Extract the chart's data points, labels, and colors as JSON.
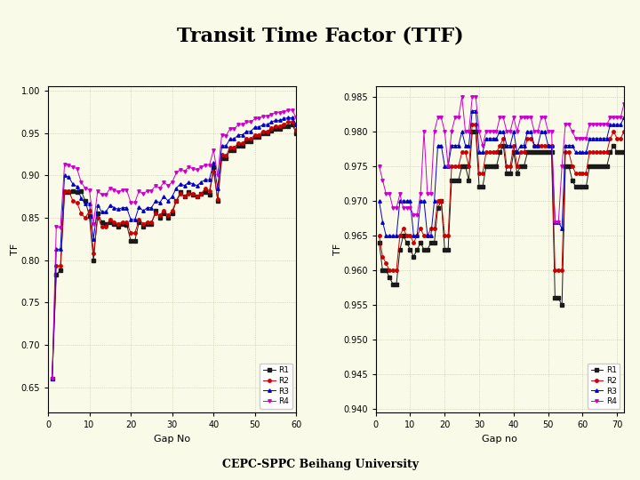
{
  "title": "Transit Time Factor (TTF)",
  "title_fontsize": 16,
  "title_fontweight": "bold",
  "subtitle": "CEPC-SPPC Beihang University",
  "subtitle_fontsize": 9,
  "background_color": "#FAFAE8",
  "plot_bg_color": "#FAFAE8",
  "colors": {
    "R1": "#1a1a1a",
    "R2": "#cc0000",
    "R3": "#0000cc",
    "R4": "#cc00cc"
  },
  "markers": {
    "R1": "s",
    "R2": "o",
    "R3": "^",
    "R4": "v"
  },
  "left_plot": {
    "xlabel": "Gap No",
    "ylabel": "TF",
    "xlim": [
      0,
      60
    ],
    "ylim": [
      0.62,
      1.005
    ],
    "yticks": [
      0.65,
      0.7,
      0.75,
      0.8,
      0.85,
      0.9,
      0.95,
      1.0
    ],
    "xticks": [
      0,
      10,
      20,
      30,
      40,
      50,
      60
    ],
    "R1": [
      0.66,
      0.783,
      0.788,
      0.88,
      0.88,
      0.882,
      0.88,
      0.882,
      0.87,
      0.852,
      0.8,
      0.855,
      0.845,
      0.843,
      0.845,
      0.843,
      0.84,
      0.843,
      0.842,
      0.823,
      0.823,
      0.845,
      0.84,
      0.843,
      0.843,
      0.858,
      0.85,
      0.855,
      0.85,
      0.855,
      0.87,
      0.88,
      0.875,
      0.88,
      0.877,
      0.875,
      0.878,
      0.88,
      0.877,
      0.91,
      0.87,
      0.92,
      0.92,
      0.93,
      0.93,
      0.935,
      0.935,
      0.94,
      0.94,
      0.945,
      0.945,
      0.95,
      0.95,
      0.953,
      0.955,
      0.955,
      0.958,
      0.958,
      0.96,
      0.95
    ],
    "R2": [
      0.66,
      0.793,
      0.793,
      0.882,
      0.882,
      0.87,
      0.868,
      0.855,
      0.85,
      0.858,
      0.808,
      0.85,
      0.84,
      0.84,
      0.848,
      0.845,
      0.843,
      0.845,
      0.845,
      0.832,
      0.832,
      0.848,
      0.843,
      0.845,
      0.845,
      0.855,
      0.853,
      0.858,
      0.853,
      0.858,
      0.87,
      0.878,
      0.875,
      0.878,
      0.878,
      0.875,
      0.878,
      0.885,
      0.882,
      0.905,
      0.872,
      0.925,
      0.923,
      0.933,
      0.933,
      0.938,
      0.938,
      0.943,
      0.943,
      0.948,
      0.948,
      0.952,
      0.952,
      0.956,
      0.958,
      0.958,
      0.96,
      0.963,
      0.963,
      0.953
    ],
    "R3": [
      0.66,
      0.813,
      0.813,
      0.9,
      0.898,
      0.89,
      0.887,
      0.873,
      0.867,
      0.867,
      0.825,
      0.865,
      0.857,
      0.857,
      0.865,
      0.862,
      0.86,
      0.862,
      0.862,
      0.848,
      0.848,
      0.863,
      0.858,
      0.862,
      0.862,
      0.87,
      0.868,
      0.875,
      0.87,
      0.875,
      0.885,
      0.89,
      0.888,
      0.892,
      0.89,
      0.888,
      0.892,
      0.895,
      0.895,
      0.915,
      0.885,
      0.935,
      0.935,
      0.943,
      0.943,
      0.948,
      0.948,
      0.952,
      0.952,
      0.957,
      0.957,
      0.96,
      0.96,
      0.963,
      0.965,
      0.965,
      0.967,
      0.968,
      0.968,
      0.96
    ],
    "R4": [
      0.66,
      0.84,
      0.838,
      0.913,
      0.912,
      0.91,
      0.908,
      0.892,
      0.885,
      0.883,
      0.843,
      0.882,
      0.877,
      0.877,
      0.885,
      0.883,
      0.88,
      0.883,
      0.883,
      0.868,
      0.868,
      0.882,
      0.878,
      0.882,
      0.882,
      0.888,
      0.885,
      0.892,
      0.888,
      0.892,
      0.903,
      0.907,
      0.905,
      0.91,
      0.908,
      0.907,
      0.91,
      0.912,
      0.912,
      0.93,
      0.9,
      0.948,
      0.947,
      0.955,
      0.955,
      0.96,
      0.96,
      0.963,
      0.963,
      0.967,
      0.967,
      0.97,
      0.97,
      0.972,
      0.974,
      0.974,
      0.975,
      0.977,
      0.977,
      0.968
    ]
  },
  "right_plot": {
    "xlabel": "Gap no",
    "ylabel": "TF",
    "xlim": [
      0,
      72
    ],
    "ylim": [
      0.9395,
      0.9865
    ],
    "yticks": [
      0.94,
      0.945,
      0.95,
      0.955,
      0.96,
      0.965,
      0.97,
      0.975,
      0.98,
      0.985
    ],
    "xticks": [
      0,
      10,
      20,
      30,
      40,
      50,
      60,
      70
    ],
    "R1": [
      0.964,
      0.96,
      0.96,
      0.959,
      0.958,
      0.958,
      0.963,
      0.965,
      0.964,
      0.963,
      0.962,
      0.963,
      0.964,
      0.963,
      0.963,
      0.964,
      0.964,
      0.969,
      0.97,
      0.963,
      0.963,
      0.973,
      0.973,
      0.973,
      0.975,
      0.975,
      0.973,
      0.98,
      0.98,
      0.972,
      0.972,
      0.975,
      0.975,
      0.975,
      0.975,
      0.977,
      0.978,
      0.974,
      0.974,
      0.977,
      0.974,
      0.975,
      0.975,
      0.977,
      0.977,
      0.977,
      0.977,
      0.977,
      0.977,
      0.977,
      0.977,
      0.956,
      0.956,
      0.955,
      0.975,
      0.975,
      0.973,
      0.972,
      0.972,
      0.972,
      0.972,
      0.975,
      0.975,
      0.975,
      0.975,
      0.975,
      0.975,
      0.977,
      0.978,
      0.977,
      0.977,
      0.977
    ],
    "R2": [
      0.965,
      0.962,
      0.961,
      0.96,
      0.96,
      0.96,
      0.965,
      0.966,
      0.965,
      0.965,
      0.964,
      0.965,
      0.966,
      0.965,
      0.965,
      0.966,
      0.966,
      0.97,
      0.97,
      0.965,
      0.965,
      0.975,
      0.975,
      0.975,
      0.977,
      0.977,
      0.975,
      0.981,
      0.981,
      0.974,
      0.974,
      0.977,
      0.977,
      0.977,
      0.977,
      0.978,
      0.979,
      0.975,
      0.975,
      0.978,
      0.975,
      0.977,
      0.977,
      0.979,
      0.979,
      0.978,
      0.978,
      0.978,
      0.978,
      0.978,
      0.978,
      0.96,
      0.96,
      0.96,
      0.977,
      0.977,
      0.975,
      0.974,
      0.974,
      0.974,
      0.974,
      0.977,
      0.977,
      0.977,
      0.977,
      0.977,
      0.977,
      0.979,
      0.98,
      0.979,
      0.979,
      0.98
    ],
    "R3": [
      0.97,
      0.967,
      0.965,
      0.965,
      0.965,
      0.965,
      0.97,
      0.97,
      0.97,
      0.97,
      0.965,
      0.965,
      0.97,
      0.97,
      0.965,
      0.965,
      0.97,
      0.978,
      0.978,
      0.975,
      0.975,
      0.978,
      0.978,
      0.978,
      0.98,
      0.978,
      0.978,
      0.983,
      0.983,
      0.977,
      0.977,
      0.979,
      0.979,
      0.979,
      0.979,
      0.98,
      0.98,
      0.978,
      0.978,
      0.98,
      0.977,
      0.978,
      0.978,
      0.98,
      0.98,
      0.978,
      0.978,
      0.98,
      0.98,
      0.978,
      0.978,
      0.967,
      0.967,
      0.966,
      0.978,
      0.978,
      0.978,
      0.977,
      0.977,
      0.977,
      0.977,
      0.979,
      0.979,
      0.979,
      0.979,
      0.979,
      0.979,
      0.981,
      0.981,
      0.981,
      0.981,
      0.982
    ],
    "R4": [
      0.975,
      0.973,
      0.971,
      0.971,
      0.969,
      0.969,
      0.971,
      0.969,
      0.969,
      0.969,
      0.968,
      0.968,
      0.971,
      0.98,
      0.971,
      0.971,
      0.98,
      0.982,
      0.982,
      0.98,
      0.975,
      0.98,
      0.982,
      0.982,
      0.985,
      0.98,
      0.98,
      0.985,
      0.985,
      0.98,
      0.978,
      0.98,
      0.98,
      0.98,
      0.98,
      0.982,
      0.982,
      0.98,
      0.98,
      0.982,
      0.98,
      0.982,
      0.982,
      0.982,
      0.982,
      0.98,
      0.98,
      0.982,
      0.982,
      0.98,
      0.98,
      0.967,
      0.967,
      0.975,
      0.981,
      0.981,
      0.98,
      0.979,
      0.979,
      0.979,
      0.979,
      0.981,
      0.981,
      0.981,
      0.981,
      0.981,
      0.981,
      0.982,
      0.982,
      0.982,
      0.982,
      0.984
    ]
  }
}
